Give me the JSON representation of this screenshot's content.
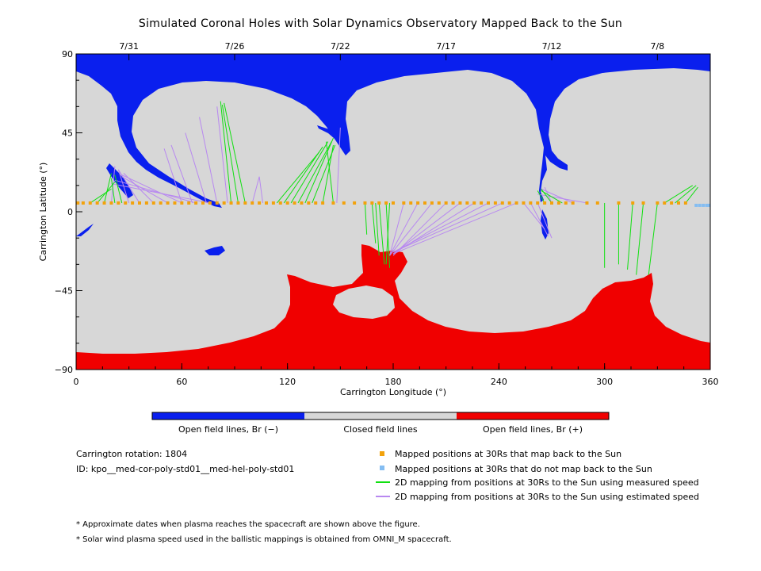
{
  "title": "Simulated Coronal Holes with Solar Dynamics Observatory Mapped Back to the Sun",
  "colors": {
    "open_neg": "#0a1fee",
    "open_pos": "#f00000",
    "closed": "#d7d7d7",
    "mapped": "#f2a20c",
    "unmapped": "#84bdf2",
    "measured": "#10e010",
    "estimated": "#b888f0"
  },
  "chart_data": {
    "type": "map",
    "xlabel": "Carrington Longitude (°)",
    "ylabel": "Carrington Latitude (°)",
    "xlim": [
      0,
      360
    ],
    "ylim": [
      -90,
      90
    ],
    "xticks": [
      "0",
      "60",
      "120",
      "180",
      "240",
      "300",
      "360"
    ],
    "yticks": [
      "90",
      "45",
      "0",
      "−45",
      "−90"
    ],
    "date_ticks": [
      {
        "label": "7/31",
        "lon": 30
      },
      {
        "label": "7/26",
        "lon": 90
      },
      {
        "label": "7/22",
        "lon": 150
      },
      {
        "label": "7/17",
        "lon": 210
      },
      {
        "label": "7/12",
        "lon": 270
      },
      {
        "label": "7/8",
        "lon": 330
      }
    ],
    "mapped_points_lat": 5,
    "mapped_points_lon": [
      1,
      4,
      8,
      12,
      16,
      20,
      24,
      28,
      32,
      36,
      40,
      44,
      48,
      52,
      56,
      60,
      64,
      68,
      72,
      76,
      80,
      84,
      88,
      92,
      96,
      100,
      104,
      108,
      112,
      116,
      120,
      124,
      128,
      132,
      136,
      140,
      146,
      152,
      158,
      164,
      168,
      172,
      176,
      180,
      186,
      190,
      194,
      198,
      202,
      206,
      210,
      214,
      218,
      222,
      226,
      230,
      234,
      238,
      242,
      246,
      250,
      254,
      258,
      262,
      266,
      270,
      274,
      278,
      282,
      290,
      296,
      308,
      316,
      322,
      330,
      334,
      338,
      342,
      346
    ],
    "unmapped_points_lon": [
      352,
      354,
      356,
      358,
      360
    ],
    "measured_lines": [
      [
        8,
        5,
        20,
        13
      ],
      [
        12,
        5,
        22,
        17
      ],
      [
        16,
        5,
        20,
        22
      ],
      [
        22,
        5,
        20,
        19
      ],
      [
        26,
        5,
        22,
        21
      ],
      [
        88,
        5,
        82,
        63
      ],
      [
        92,
        5,
        83,
        61
      ],
      [
        96,
        5,
        84,
        62
      ],
      [
        114,
        5,
        138,
        34
      ],
      [
        118,
        5,
        140,
        37
      ],
      [
        122,
        5,
        143,
        40
      ],
      [
        126,
        5,
        145,
        40
      ],
      [
        130,
        5,
        146,
        42
      ],
      [
        134,
        5,
        147,
        38
      ],
      [
        140,
        5,
        146,
        38
      ],
      [
        146,
        5,
        142,
        40
      ],
      [
        164,
        5,
        165,
        -13
      ],
      [
        168,
        5,
        170,
        -18
      ],
      [
        170,
        5,
        172,
        -25
      ],
      [
        172,
        5,
        175,
        -30
      ],
      [
        176,
        5,
        178,
        -32
      ],
      [
        178,
        5,
        176,
        -30
      ],
      [
        266,
        5,
        262,
        12
      ],
      [
        270,
        5,
        264,
        13
      ],
      [
        276,
        5,
        264,
        12
      ],
      [
        300,
        5,
        300,
        -32
      ],
      [
        308,
        5,
        308,
        -30
      ],
      [
        316,
        5,
        313,
        -33
      ],
      [
        322,
        5,
        318,
        -36
      ],
      [
        330,
        5,
        325,
        -36
      ],
      [
        334,
        5,
        350,
        15
      ],
      [
        340,
        5,
        352,
        15
      ],
      [
        346,
        5,
        353,
        14
      ]
    ],
    "estimated_lines": [
      [
        20,
        5,
        22,
        26
      ],
      [
        30,
        5,
        24,
        24
      ],
      [
        36,
        5,
        24,
        24
      ],
      [
        44,
        5,
        27,
        22
      ],
      [
        52,
        5,
        26,
        20
      ],
      [
        60,
        5,
        26,
        21
      ],
      [
        68,
        5,
        22,
        18
      ],
      [
        76,
        5,
        20,
        16
      ],
      [
        60,
        5,
        50,
        36
      ],
      [
        66,
        5,
        54,
        38
      ],
      [
        74,
        5,
        62,
        45
      ],
      [
        80,
        5,
        70,
        54
      ],
      [
        86,
        5,
        80,
        60
      ],
      [
        100,
        5,
        104,
        20
      ],
      [
        106,
        5,
        104,
        20
      ],
      [
        148,
        5,
        150,
        48
      ],
      [
        186,
        5,
        178,
        -25
      ],
      [
        194,
        5,
        178,
        -25
      ],
      [
        202,
        5,
        178,
        -25
      ],
      [
        210,
        5,
        180,
        -25
      ],
      [
        218,
        5,
        180,
        -24
      ],
      [
        226,
        5,
        180,
        -24
      ],
      [
        234,
        5,
        180,
        -23
      ],
      [
        242,
        5,
        180,
        -23
      ],
      [
        250,
        5,
        180,
        -24
      ],
      [
        254,
        5,
        266,
        -10
      ],
      [
        258,
        5,
        268,
        -14
      ],
      [
        262,
        5,
        270,
        -15
      ],
      [
        270,
        5,
        266,
        14
      ],
      [
        282,
        5,
        264,
        13
      ],
      [
        290,
        5,
        262,
        10
      ]
    ]
  },
  "colorbar": {
    "labels": [
      "Open field lines, Br (−)",
      "Closed field lines",
      "Open field lines, Br (+)"
    ]
  },
  "info": {
    "rotation": "Carrington rotation: 1804",
    "id": "ID: kpo__med-cor-poly-std01__med-hel-poly-std01"
  },
  "legend": [
    {
      "kind": "square",
      "color": "#f2a20c",
      "label": "Mapped positions at 30Rs that map back to the Sun"
    },
    {
      "kind": "square",
      "color": "#84bdf2",
      "label": "Mapped positions at 30Rs that do not map back to the Sun"
    },
    {
      "kind": "line",
      "color": "#10e010",
      "label": "2D mapping from positions at 30Rs to the Sun using measured speed"
    },
    {
      "kind": "line",
      "color": "#b888f0",
      "label": "2D mapping from positions at 30Rs to the Sun using estimated speed"
    }
  ],
  "notes": [
    "* Approximate dates when plasma reaches the spacecraft are shown above the figure.",
    "* Solar wind plasma speed used in the ballistic mappings is obtained from OMNI_M spacecraft."
  ]
}
